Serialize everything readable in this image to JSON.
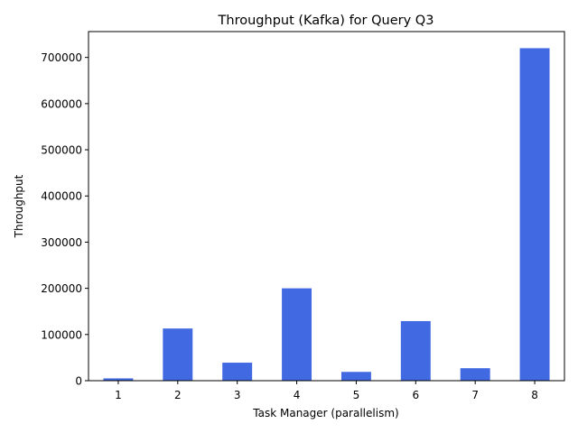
{
  "chart_data": {
    "type": "bar",
    "title": "Throughput (Kafka) for Query Q3",
    "xlabel": "Task Manager (parallelism)",
    "ylabel": "Throughput",
    "categories": [
      "1",
      "2",
      "3",
      "4",
      "5",
      "6",
      "7",
      "8"
    ],
    "values": [
      5000,
      113000,
      39000,
      200000,
      19000,
      129000,
      27000,
      720000
    ],
    "ylim": [
      0,
      756000
    ],
    "yticks": [
      0,
      100000,
      200000,
      300000,
      400000,
      500000,
      600000,
      700000
    ],
    "grid": false,
    "bar_color": "#4169E1"
  }
}
